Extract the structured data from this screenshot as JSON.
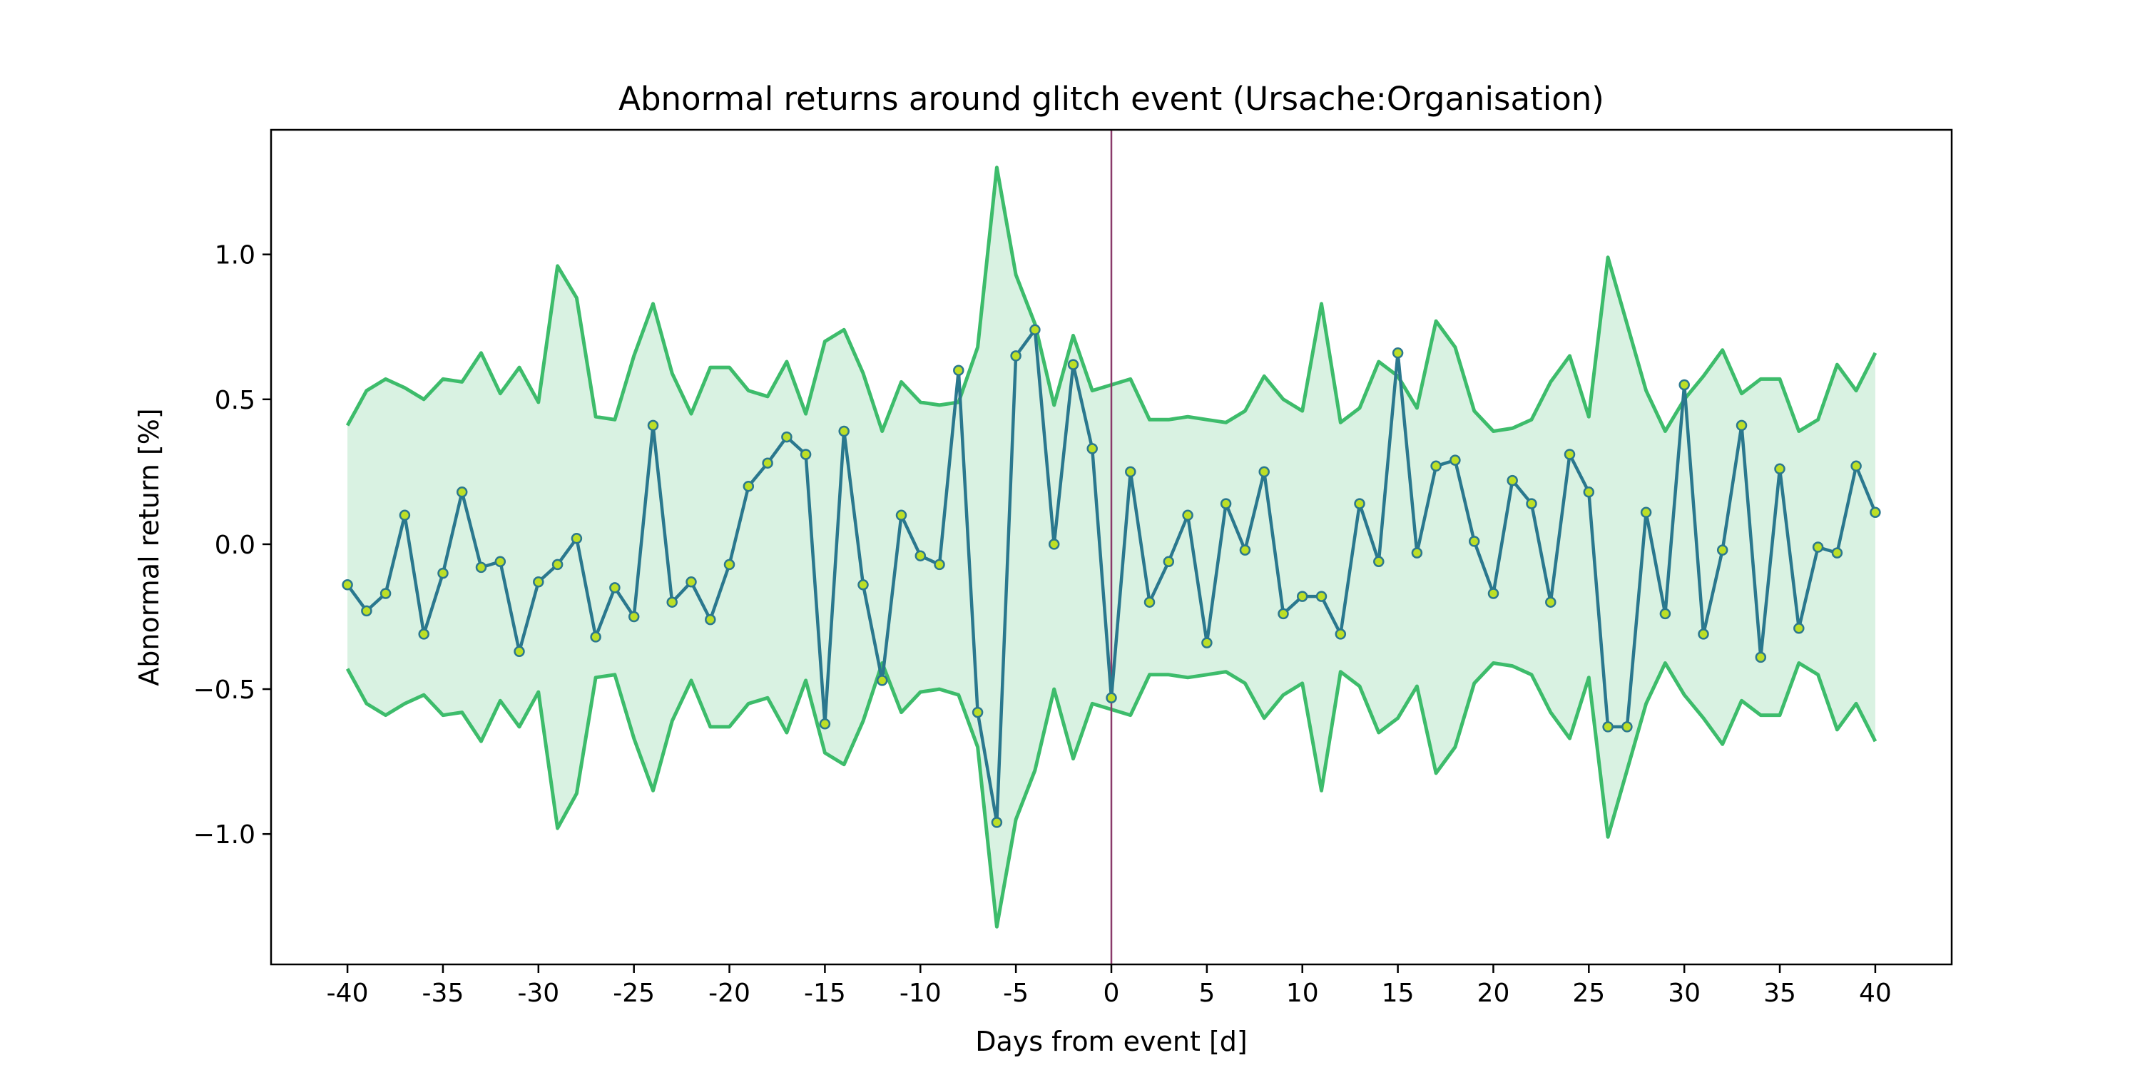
{
  "chart_data": {
    "type": "line",
    "title": "Abnormal returns around glitch event (Ursache:Organisation)",
    "xlabel": "Days from event [d]",
    "ylabel": "Abnormal return [%]",
    "xlim": [
      -44,
      44
    ],
    "ylim": [
      -1.45,
      1.43
    ],
    "x_ticks": [
      -40,
      -35,
      -30,
      -25,
      -20,
      -15,
      -10,
      -5,
      0,
      5,
      10,
      15,
      20,
      25,
      30,
      35,
      40
    ],
    "x_tick_labels": [
      "-40",
      "-35",
      "-30",
      "-25",
      "-20",
      "-15",
      "-10",
      "-5",
      "0",
      "5",
      "10",
      "15",
      "20",
      "25",
      "30",
      "35",
      "40"
    ],
    "y_ticks": [
      -1.0,
      -0.5,
      0.0,
      0.5,
      1.0
    ],
    "y_tick_labels": [
      "−1.0",
      "−0.5",
      "0.0",
      "0.5",
      "1.0"
    ],
    "grid": false,
    "event_line_x": 0,
    "colors": {
      "abnormal_return_line": "#2a788e",
      "marker_fill": "#bddf26",
      "band_line": "#3dbc6b",
      "band_fill": "#d9f2e2",
      "event_line": "#8a3a6a"
    },
    "x": [
      -40,
      -39,
      -38,
      -37,
      -36,
      -35,
      -34,
      -33,
      -32,
      -31,
      -30,
      -29,
      -28,
      -27,
      -26,
      -25,
      -24,
      -23,
      -22,
      -21,
      -20,
      -19,
      -18,
      -17,
      -16,
      -15,
      -14,
      -13,
      -12,
      -11,
      -10,
      -9,
      -8,
      -7,
      -6,
      -5,
      -4,
      -3,
      -2,
      -1,
      0,
      1,
      2,
      3,
      4,
      5,
      6,
      7,
      8,
      9,
      10,
      11,
      12,
      13,
      14,
      15,
      16,
      17,
      18,
      19,
      20,
      21,
      22,
      23,
      24,
      25,
      26,
      27,
      28,
      29,
      30,
      31,
      32,
      33,
      34,
      35,
      36,
      37,
      38,
      39,
      40
    ],
    "series": [
      {
        "values": [
          -0.14,
          -0.23,
          -0.17,
          0.1,
          -0.31,
          -0.1,
          0.18,
          -0.08,
          -0.06,
          -0.37,
          -0.13,
          -0.07,
          0.02,
          -0.32,
          -0.15,
          -0.25,
          0.41,
          -0.2,
          -0.13,
          -0.26,
          -0.07,
          0.2,
          0.28,
          0.37,
          0.31,
          -0.62,
          0.39,
          -0.14,
          -0.47,
          0.1,
          -0.04,
          -0.07,
          0.6,
          -0.58,
          -0.96,
          0.65,
          0.74,
          0.0,
          0.62,
          0.33,
          -0.53,
          0.25,
          -0.2,
          -0.06,
          0.1,
          -0.34,
          0.14,
          -0.02,
          0.25,
          -0.24,
          -0.18,
          -0.18,
          -0.31,
          0.14,
          -0.06,
          0.66,
          -0.03,
          0.27,
          0.29,
          0.01,
          -0.17,
          0.22,
          0.14,
          -0.2,
          0.31,
          0.18,
          -0.63,
          -0.63,
          0.11,
          -0.24,
          0.55,
          -0.31,
          -0.02,
          0.41,
          -0.39,
          0.26,
          -0.29,
          -0.01,
          -0.03,
          0.27,
          0.11
        ]
      },
      {
        "values": [
          0.41,
          0.53,
          0.57,
          0.54,
          0.5,
          0.57,
          0.56,
          0.66,
          0.52,
          0.61,
          0.49,
          0.96,
          0.85,
          0.44,
          0.43,
          0.65,
          0.83,
          0.59,
          0.45,
          0.61,
          0.61,
          0.53,
          0.51,
          0.63,
          0.45,
          0.7,
          0.74,
          0.59,
          0.39,
          0.56,
          0.49,
          0.48,
          0.49,
          0.68,
          1.3,
          0.93,
          0.76,
          0.48,
          0.72,
          0.53,
          0.55,
          0.57,
          0.43,
          0.43,
          0.44,
          0.43,
          0.42,
          0.46,
          0.58,
          0.5,
          0.46,
          0.83,
          0.42,
          0.47,
          0.63,
          0.58,
          0.47,
          0.77,
          0.68,
          0.46,
          0.39,
          0.4,
          0.43,
          0.56,
          0.65,
          0.44,
          0.99,
          0.76,
          0.53,
          0.39,
          0.5,
          0.58,
          0.67,
          0.52,
          0.57,
          0.57,
          0.39,
          0.43,
          0.62,
          0.53,
          0.66
        ]
      },
      {
        "values": [
          -0.43,
          -0.55,
          -0.59,
          -0.55,
          -0.52,
          -0.59,
          -0.58,
          -0.68,
          -0.54,
          -0.63,
          -0.51,
          -0.98,
          -0.86,
          -0.46,
          -0.45,
          -0.67,
          -0.85,
          -0.61,
          -0.47,
          -0.63,
          -0.63,
          -0.55,
          -0.53,
          -0.65,
          -0.47,
          -0.72,
          -0.76,
          -0.61,
          -0.41,
          -0.58,
          -0.51,
          -0.5,
          -0.52,
          -0.7,
          -1.32,
          -0.95,
          -0.78,
          -0.5,
          -0.74,
          -0.55,
          -0.57,
          -0.59,
          -0.45,
          -0.45,
          -0.46,
          -0.45,
          -0.44,
          -0.48,
          -0.6,
          -0.52,
          -0.48,
          -0.85,
          -0.44,
          -0.49,
          -0.65,
          -0.6,
          -0.49,
          -0.79,
          -0.7,
          -0.48,
          -0.41,
          -0.42,
          -0.45,
          -0.58,
          -0.67,
          -0.46,
          -1.01,
          -0.78,
          -0.55,
          -0.41,
          -0.52,
          -0.6,
          -0.69,
          -0.54,
          -0.59,
          -0.59,
          -0.41,
          -0.45,
          -0.64,
          -0.55,
          -0.68
        ]
      }
    ]
  }
}
